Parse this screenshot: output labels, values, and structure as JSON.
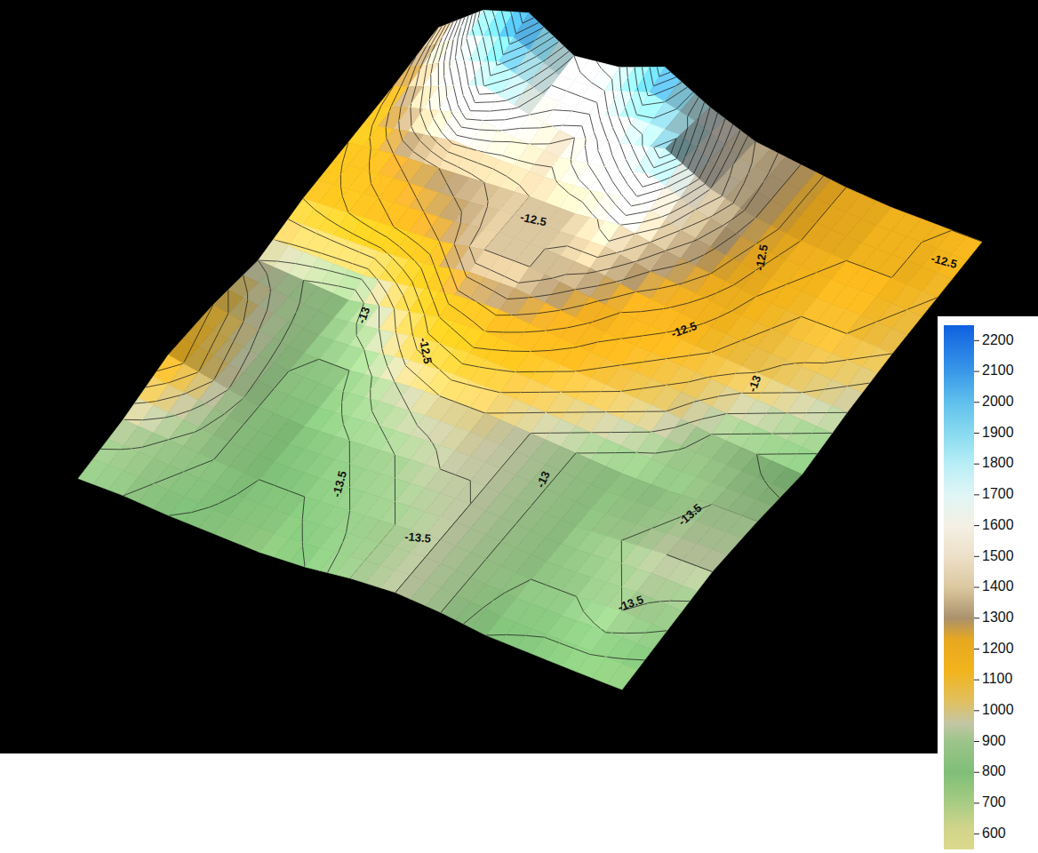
{
  "chart_data": {
    "type": "surface",
    "z": [
      [
        1300,
        1900,
        2150,
        1700,
        1800,
        2100,
        1700,
        1400,
        1300,
        1200,
        1150,
        1150,
        1150
      ],
      [
        1200,
        1500,
        1800,
        1600,
        1500,
        1700,
        1900,
        1500,
        1300,
        1200,
        1150,
        1150,
        1100
      ],
      [
        1150,
        1250,
        1300,
        1350,
        1400,
        1400,
        1500,
        1350,
        1250,
        1150,
        1100,
        1100,
        1050
      ],
      [
        1100,
        1150,
        1200,
        1250,
        1400,
        1400,
        1300,
        1200,
        1150,
        1100,
        1050,
        1000,
        950
      ],
      [
        950,
        900,
        850,
        1000,
        1150,
        1200,
        1150,
        1100,
        1050,
        1000,
        900,
        850,
        800
      ],
      [
        1100,
        950,
        850,
        850,
        950,
        1000,
        1000,
        950,
        900,
        850,
        850,
        900,
        900
      ],
      [
        1150,
        1000,
        850,
        800,
        850,
        900,
        950,
        950,
        900,
        850,
        900,
        950,
        950
      ],
      [
        950,
        900,
        850,
        800,
        800,
        850,
        900,
        950,
        900,
        850,
        850,
        900,
        850
      ],
      [
        850,
        850,
        800,
        780,
        760,
        800,
        900,
        950,
        900,
        800,
        780,
        760,
        750
      ]
    ],
    "contour_labels": [
      "-12.5",
      "-12.5",
      "-12.5",
      "-12.5",
      "-12.5",
      "-13",
      "-13",
      "-13",
      "-13.5",
      "-13.5",
      "-13.5",
      "-13.5"
    ],
    "colorbar_lim": [
      550,
      2250
    ],
    "colorbar_ticks": [
      600,
      700,
      800,
      900,
      1000,
      1100,
      1200,
      1300,
      1400,
      1500,
      1600,
      1700,
      1800,
      1900,
      2000,
      2100,
      2200
    ]
  }
}
